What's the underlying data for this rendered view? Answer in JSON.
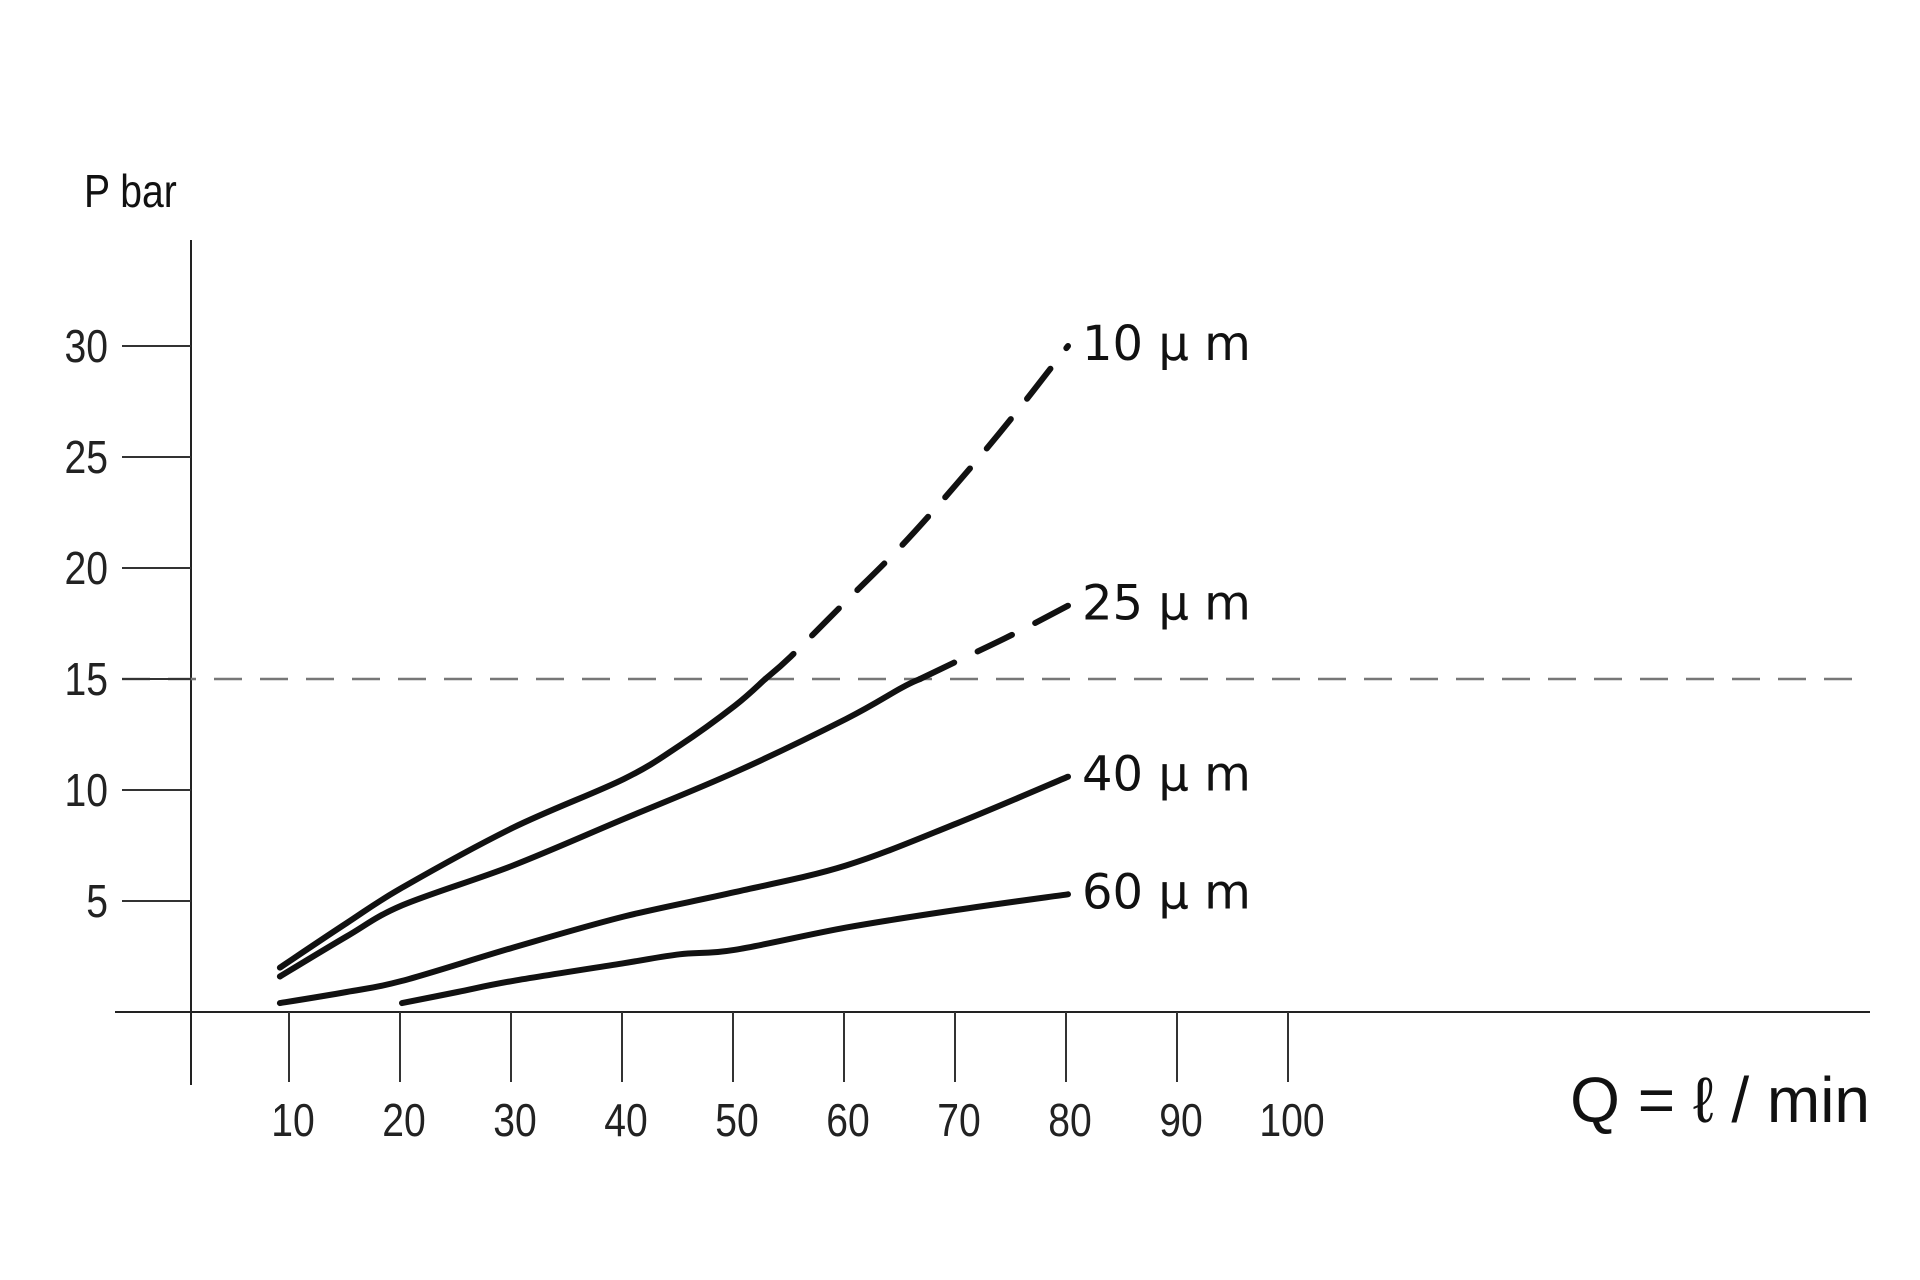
{
  "chart_data": {
    "type": "line",
    "title": "",
    "xlabel": "Q = ℓ / min",
    "ylabel": "P bar",
    "xlim": [
      0,
      100
    ],
    "ylim": [
      0,
      30
    ],
    "x_ticks": [
      10,
      20,
      30,
      40,
      50,
      60,
      70,
      80,
      90,
      100
    ],
    "y_ticks": [
      5,
      10,
      15,
      20,
      25,
      30
    ],
    "grid": false,
    "reference_line": {
      "y": 15,
      "style": "dashed"
    },
    "series": [
      {
        "name": "10 µ m",
        "dashed_above": 15,
        "points": [
          [
            9,
            2.0
          ],
          [
            15,
            4.0
          ],
          [
            20,
            5.6
          ],
          [
            30,
            8.3
          ],
          [
            40,
            10.5
          ],
          [
            45,
            12.0
          ],
          [
            50,
            13.8
          ],
          [
            55,
            16.0
          ],
          [
            60,
            18.5
          ],
          [
            65,
            21.0
          ],
          [
            70,
            23.8
          ],
          [
            75,
            26.8
          ],
          [
            80,
            30.0
          ]
        ]
      },
      {
        "name": "25 µ m",
        "dashed_above": 15,
        "points": [
          [
            9,
            1.6
          ],
          [
            15,
            3.4
          ],
          [
            20,
            4.8
          ],
          [
            30,
            6.6
          ],
          [
            40,
            8.7
          ],
          [
            50,
            10.8
          ],
          [
            60,
            13.2
          ],
          [
            65,
            14.6
          ],
          [
            70,
            15.8
          ],
          [
            75,
            17.0
          ],
          [
            80,
            18.3
          ]
        ]
      },
      {
        "name": "40 µ m",
        "points": [
          [
            9,
            0.4
          ],
          [
            15,
            0.9
          ],
          [
            20,
            1.4
          ],
          [
            30,
            2.9
          ],
          [
            40,
            4.3
          ],
          [
            50,
            5.4
          ],
          [
            60,
            6.6
          ],
          [
            70,
            8.5
          ],
          [
            80,
            10.6
          ]
        ]
      },
      {
        "name": "60 µ m",
        "points": [
          [
            20,
            0.4
          ],
          [
            25,
            0.9
          ],
          [
            30,
            1.4
          ],
          [
            40,
            2.2
          ],
          [
            45,
            2.6
          ],
          [
            50,
            2.8
          ],
          [
            60,
            3.8
          ],
          [
            70,
            4.6
          ],
          [
            80,
            5.3
          ]
        ]
      }
    ]
  }
}
